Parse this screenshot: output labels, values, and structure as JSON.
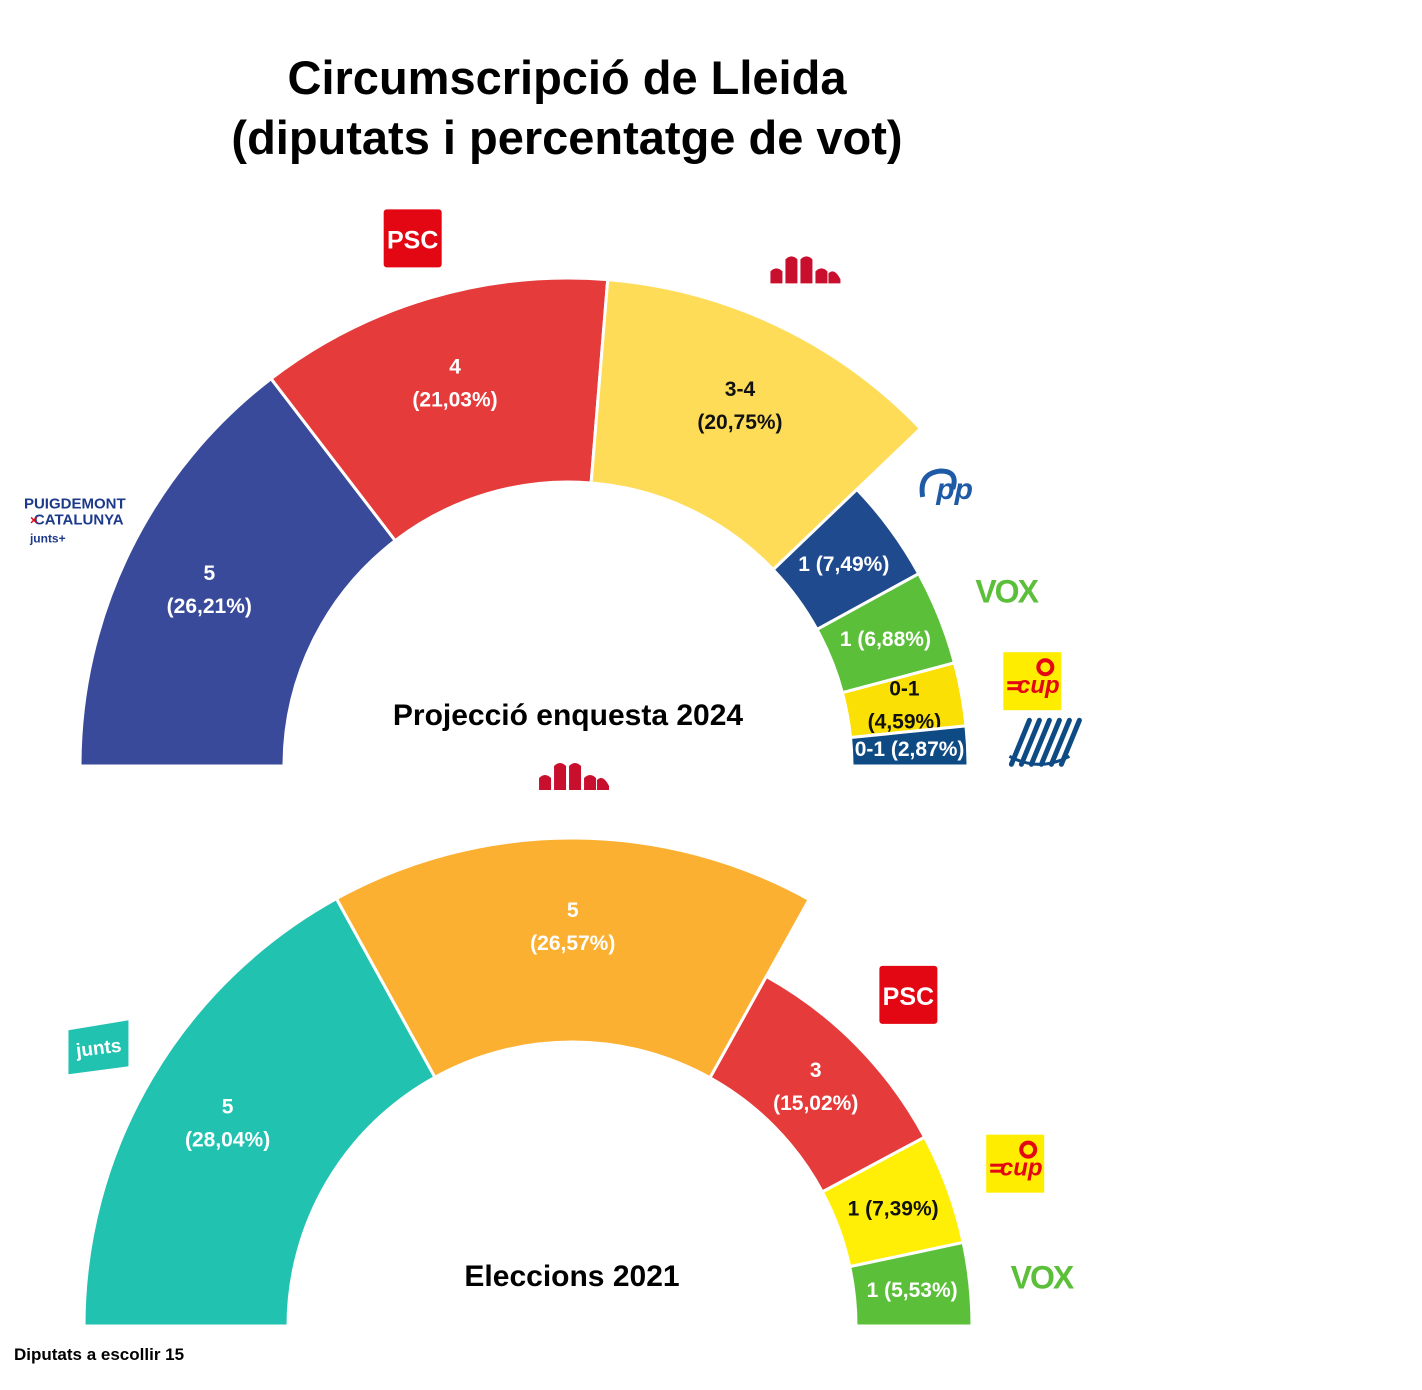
{
  "title_line1": "Circumscripció de Lleida",
  "title_line2": "(diputats i percentatge de vot)",
  "footnote": "Diputats a escollir 15",
  "chart_data": [
    {
      "type": "half-donut",
      "title": "Projecció enquesta 2024",
      "total_seats": 15,
      "series": [
        {
          "party": "Junts+ (Puigdemont per Catalunya)",
          "logo_text": [
            "PUIGDEMONT",
            "CATALUNYA",
            "junts+"
          ],
          "seats": "5",
          "percent": 26.21,
          "label": [
            "5",
            "(26,21%)"
          ],
          "color": "#3a4a9a"
        },
        {
          "party": "PSC",
          "logo_text": [
            "PSC"
          ],
          "seats": "4",
          "percent": 21.03,
          "label": [
            "4",
            "(21,03%)"
          ],
          "color": "#e53b3b"
        },
        {
          "party": "ERC",
          "logo_text": [],
          "seats": "3-4",
          "percent": 20.75,
          "label": [
            "3-4",
            "(20,75%)"
          ],
          "color": "#fedc58"
        },
        {
          "party": "PP",
          "logo_text": [
            "pp"
          ],
          "seats": "1",
          "percent": 7.49,
          "label": [
            "1 (7,49%)"
          ],
          "color": "#1f4b8e"
        },
        {
          "party": "VOX",
          "logo_text": [
            "VOX"
          ],
          "seats": "1",
          "percent": 6.88,
          "label": [
            "1 (6,88%)"
          ],
          "color": "#5cbf3a"
        },
        {
          "party": "CUP",
          "logo_text": [
            "cup"
          ],
          "seats": "0-1",
          "percent": 4.59,
          "label": [
            "0-1",
            "(4,59%)"
          ],
          "color": "#fbe005"
        },
        {
          "party": "Comuns",
          "logo_text": [],
          "seats": "0-1",
          "percent": 2.87,
          "label": [
            "0-1 (2,87%)"
          ],
          "color": "#0e4b84"
        }
      ]
    },
    {
      "type": "half-donut",
      "title": "Eleccions 2021",
      "total_seats": 15,
      "series": [
        {
          "party": "Junts",
          "logo_text": [
            "junts"
          ],
          "seats": "5",
          "percent": 28.04,
          "label": [
            "5",
            "(28,04%)"
          ],
          "color": "#22c2b1"
        },
        {
          "party": "ERC",
          "logo_text": [],
          "seats": "5",
          "percent": 26.57,
          "label": [
            "5",
            "(26,57%)"
          ],
          "color": "#fbb031"
        },
        {
          "party": "PSC",
          "logo_text": [
            "PSC"
          ],
          "seats": "3",
          "percent": 15.02,
          "label": [
            "3",
            "(15,02%)"
          ],
          "color": "#e53b3b"
        },
        {
          "party": "CUP",
          "logo_text": [
            "cup"
          ],
          "seats": "1",
          "percent": 7.39,
          "label": [
            "1 (7,39%)"
          ],
          "color": "#ffef06"
        },
        {
          "party": "VOX",
          "logo_text": [
            "VOX"
          ],
          "seats": "1",
          "percent": 5.53,
          "label": [
            "1 (5,53%)"
          ],
          "color": "#5cbf3a"
        }
      ]
    }
  ]
}
